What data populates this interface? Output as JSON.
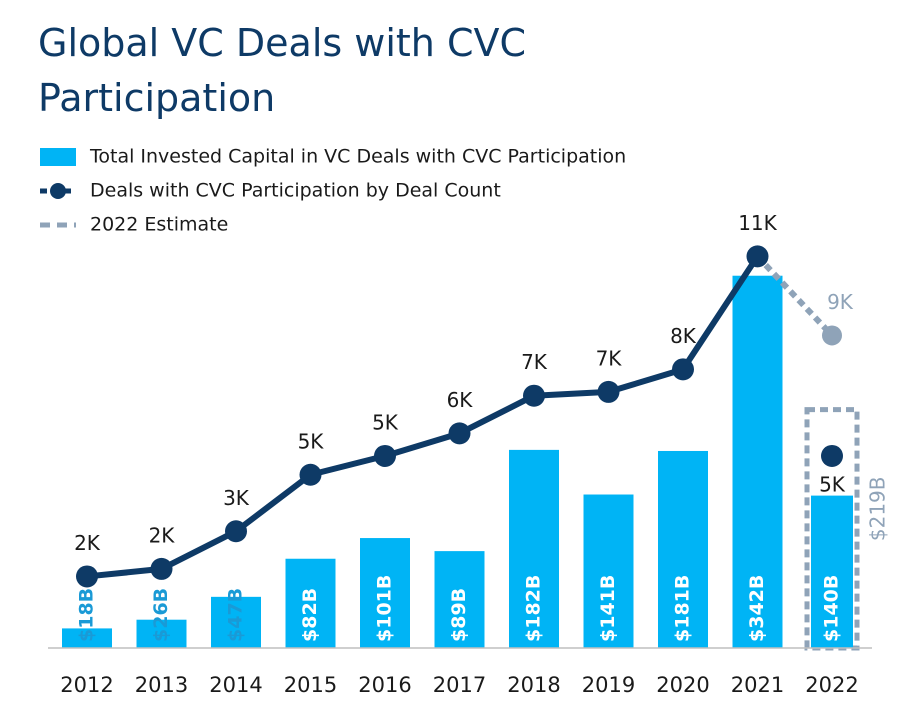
{
  "chart_data": {
    "type": "bar-line",
    "title": "Global VC Deals with CVC Participation",
    "title_note": "2",
    "categories": [
      "2012",
      "2013",
      "2014",
      "2015",
      "2016",
      "2017",
      "2018",
      "2019",
      "2020",
      "2021",
      "2022"
    ],
    "ylim": [
      0,
      384
    ],
    "y2lim": [
      0.3,
      11.4
    ],
    "series": [
      {
        "name": "Total Invested Capital in VC Deals with CVC Participation",
        "type": "bar",
        "color": "#00b4f5",
        "values": [
          18,
          26,
          47,
          82,
          101,
          89,
          182,
          141,
          181,
          342,
          140
        ],
        "value_labels": [
          "$18B",
          "$26B",
          "$47B",
          "$82B",
          "$101B",
          "$89B",
          "$182B",
          "$141B",
          "$181B",
          "$342B",
          "$140B"
        ]
      },
      {
        "name": "Deals with CVC Participation by Deal Count",
        "type": "line",
        "axis": "y2",
        "color": "#0e3a66",
        "values": [
          2.2,
          2.4,
          3.4,
          4.9,
          5.4,
          6.0,
          7.0,
          7.1,
          7.7,
          10.7,
          5.4
        ],
        "value_labels": [
          "2K",
          "2K",
          "3K",
          "5K",
          "5K",
          "6K",
          "7K",
          "7K",
          "8K",
          "11K",
          "5K"
        ]
      }
    ],
    "estimate": {
      "name": "2022 Estimate",
      "color": "#8fa3b8",
      "capital": 219,
      "capital_label": "$219B",
      "deals": 8.6,
      "deals_label": "9K"
    }
  }
}
